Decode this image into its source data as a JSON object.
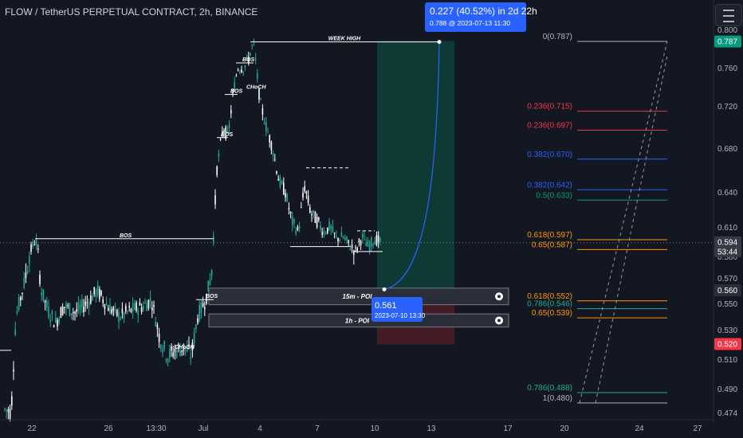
{
  "header": {
    "symbol_title": "FLOW / TetherUS PERPETUAL CONTRACT, 2h, BINANCE"
  },
  "chart_data": {
    "type": "candlestick",
    "y_axis_labels": [
      "0.800",
      "0.760",
      "0.720",
      "0.680",
      "0.640",
      "0.610",
      "0.580",
      "0.570",
      "0.550",
      "0.530",
      "0.510",
      "0.490",
      "0.474"
    ],
    "x_axis_labels": [
      "22",
      "26",
      "13:30",
      "Jul",
      "4",
      "7",
      "10",
      "13",
      "17",
      "20",
      "24",
      "27"
    ],
    "price_badges": [
      {
        "label": "0.787",
        "bg": "#089981",
        "fg": "#ffffff"
      },
      {
        "label": "0.594",
        "label2": "53:44",
        "bg": "#363a45",
        "fg": "#ffffff"
      },
      {
        "label": "0.560",
        "bg": "#2a2e39",
        "fg": "#ffffff"
      },
      {
        "label": "0.520",
        "bg": "#f23645",
        "fg": "#ffffff"
      }
    ],
    "current_price": 0.594,
    "structure_labels": [
      "BOS",
      "BOS",
      "BOS",
      "BOS",
      "BOS",
      "BOS",
      "CHoCH",
      "CHoCH"
    ],
    "week_high_label": "WEEK HIGH",
    "zones": [
      {
        "label": "15m - POI"
      },
      {
        "label": "1h - POI"
      }
    ],
    "fib_levels": [
      {
        "label": "0(0.787)",
        "color": "#b2b5be"
      },
      {
        "label": "0.236(0.715)",
        "color": "#f23645"
      },
      {
        "label": "0.236(0.697)",
        "color": "#f23645"
      },
      {
        "label": "0.382(0.670)",
        "color": "#2962ff"
      },
      {
        "label": "0.382(0.642)",
        "color": "#2962ff"
      },
      {
        "label": "0.5(0.633)",
        "color": "#089981"
      },
      {
        "label": "0.618(0.597)",
        "color": "#ff9800"
      },
      {
        "label": "0.65(0.587)",
        "color": "#ff9800"
      },
      {
        "label": "0.618(0.552)",
        "color": "#ff9800"
      },
      {
        "label": "0.786(0.546)",
        "color": "#22ab94"
      },
      {
        "label": "0.65(0.539)",
        "color": "#ff9800"
      },
      {
        "label": "0.786(0.488)",
        "color": "#22ab94"
      },
      {
        "label": "1(0.480)",
        "color": "#b2b5be"
      }
    ],
    "target_box": {
      "line1": "0.227 (40.52%) in 2d 22h",
      "line2": "0.788 @ 2023-07-13  11:30"
    },
    "entry_box": {
      "line1": "0.561",
      "line2": "2023-07-10 13:30"
    },
    "colors": {
      "background": "#131722",
      "up": "#26a69a",
      "down": "#ffffff",
      "grid": "#1e222d",
      "profit": "#0f3d37",
      "loss": "#4a1d26",
      "accent": "#2962ff"
    }
  }
}
